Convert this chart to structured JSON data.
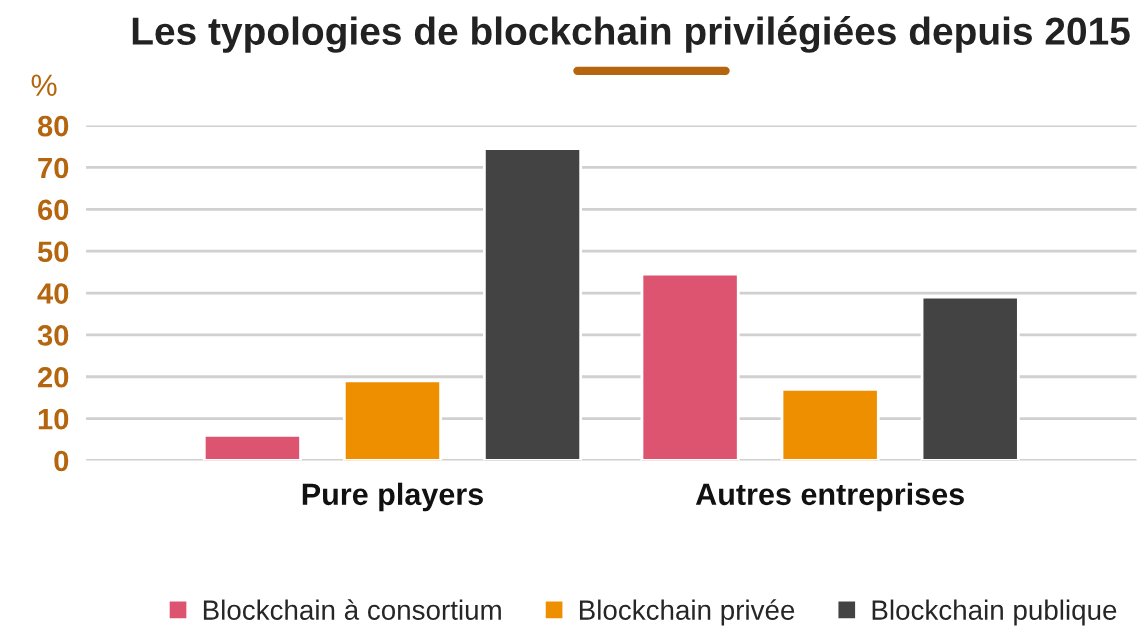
{
  "chart_data": {
    "type": "bar",
    "title": "Les typologies de blockchain privilégiées depuis 2015",
    "ylabel": "%",
    "categories": [
      "Pure players",
      "Autres entreprises"
    ],
    "series": [
      {
        "name": "Blockchain à consortium",
        "color": "#dc5470",
        "values": [
          6,
          44.5
        ]
      },
      {
        "name": "Blockchain privée",
        "color": "#ee8f00",
        "values": [
          19,
          17
        ]
      },
      {
        "name": "Blockchain publique",
        "color": "#434343",
        "values": [
          74.5,
          39
        ]
      }
    ],
    "ylim": [
      0,
      80
    ],
    "yticks": [
      0,
      10,
      20,
      30,
      40,
      50,
      60,
      70,
      80
    ],
    "grid": "y",
    "legend": "bottom"
  }
}
